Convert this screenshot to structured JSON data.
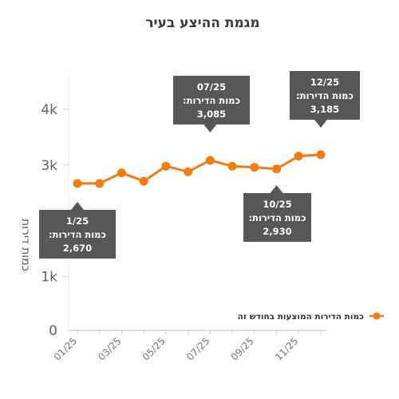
{
  "chart_data": {
    "type": "line",
    "title": "מגמת ההיצע בעיר",
    "ylabel": "כמות דירות",
    "xlabel": "",
    "ylim": [
      0,
      4400
    ],
    "yticks": [
      0,
      1000,
      2000,
      3000,
      4000
    ],
    "ytick_labels": [
      "0",
      "1k",
      "",
      "3k",
      "4k"
    ],
    "x": [
      "01/25",
      "02/25",
      "03/25",
      "04/25",
      "05/25",
      "06/25",
      "07/25",
      "08/25",
      "09/25",
      "10/25",
      "11/25",
      "12/25"
    ],
    "xtick_labels": [
      "01/25",
      "03/25",
      "05/25",
      "07/25",
      "09/25",
      "11/25"
    ],
    "series": [
      {
        "name": "כמות הדירות המוצעות בחודש זה",
        "color": "#f47c0f",
        "values": [
          2670,
          2670,
          2860,
          2710,
          2980,
          2880,
          3085,
          2980,
          2960,
          2930,
          3160,
          3185
        ]
      }
    ],
    "grid": false,
    "legend": "right",
    "annotations": [
      {
        "index": 0,
        "date": "1/25",
        "label": "כמות הדירות:",
        "value": "2,670",
        "position": "below"
      },
      {
        "index": 6,
        "date": "07/25",
        "label": "כמות הדירות:",
        "value": "3,085",
        "position": "above"
      },
      {
        "index": 9,
        "date": "10/25",
        "label": "כמות הדירות:",
        "value": "2,930",
        "position": "below"
      },
      {
        "index": 11,
        "date": "12/25",
        "label": "כמות הדירות:",
        "value": "3,185",
        "position": "above"
      }
    ]
  }
}
